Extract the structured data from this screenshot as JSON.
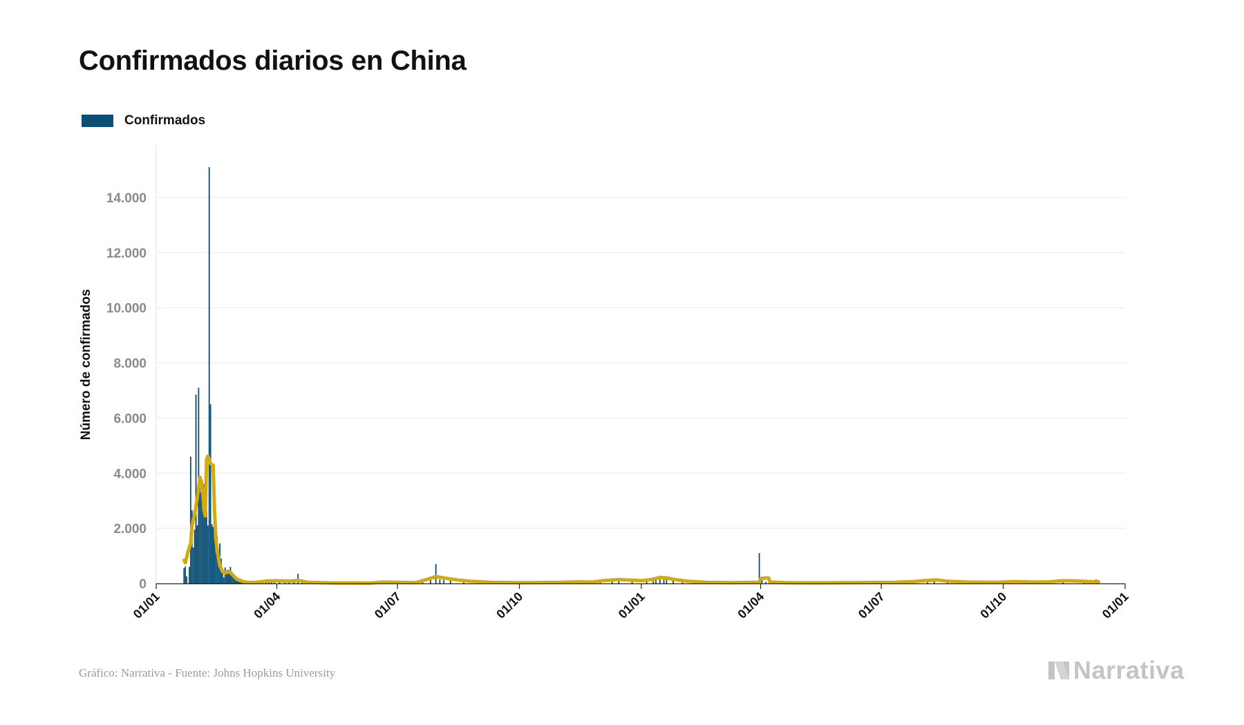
{
  "title": "Confirmados diarios en China",
  "legend": {
    "label": "Confirmados",
    "color": "#0b4f76"
  },
  "footer": {
    "source": "Gráfico: Narrativa - Fuente: Johns Hopkins University"
  },
  "brand": {
    "name": "Narrativa",
    "icon": "narrativa-logo-icon"
  },
  "chart_data": {
    "type": "bar",
    "ylabel": "Número de confirmados",
    "ylim": [
      0,
      15000
    ],
    "y_ticks": [
      0,
      2000,
      4000,
      6000,
      8000,
      10000,
      12000,
      14000
    ],
    "y_tick_labels": [
      "0",
      "2.000",
      "4.000",
      "6.000",
      "8.000",
      "10.000",
      "12.000",
      "14.000"
    ],
    "x_range": [
      "2020-01-01",
      "2022-01-01"
    ],
    "x_ticks": [
      "2020-01-01",
      "2020-04-01",
      "2020-07-01",
      "2020-10-01",
      "2021-01-01",
      "2021-04-01",
      "2021-07-01",
      "2021-10-01",
      "2022-01-01"
    ],
    "x_tick_labels": [
      "01/01",
      "01/04",
      "01/07",
      "01/10",
      "01/01",
      "01/04",
      "01/07",
      "01/10",
      "01/01"
    ],
    "grid": true,
    "legend_position": "top-left",
    "bar_color": "#0b4f76",
    "line_color": "#d1ab10",
    "series": [
      {
        "name": "Confirmados",
        "type": "bar",
        "points": [
          [
            "2020-01-22",
            550
          ],
          [
            "2020-01-23",
            620
          ],
          [
            "2020-01-24",
            260
          ],
          [
            "2020-01-26",
            600
          ],
          [
            "2020-01-27",
            4600
          ],
          [
            "2020-01-28",
            2650
          ],
          [
            "2020-01-29",
            1300
          ],
          [
            "2020-01-30",
            1950
          ],
          [
            "2020-01-31",
            6850
          ],
          [
            "2020-02-01",
            2100
          ],
          [
            "2020-02-02",
            7100
          ],
          [
            "2020-02-03",
            3800
          ],
          [
            "2020-02-04",
            3300
          ],
          [
            "2020-02-05",
            3700
          ],
          [
            "2020-02-06",
            3600
          ],
          [
            "2020-02-07",
            3100
          ],
          [
            "2020-02-08",
            2600
          ],
          [
            "2020-02-09",
            2100
          ],
          [
            "2020-02-10",
            15100
          ],
          [
            "2020-02-11",
            6500
          ],
          [
            "2020-02-12",
            2150
          ],
          [
            "2020-02-13",
            2050
          ],
          [
            "2020-02-14",
            1900
          ],
          [
            "2020-02-15",
            1800
          ],
          [
            "2020-02-16",
            1700
          ],
          [
            "2020-02-17",
            1200
          ],
          [
            "2020-02-18",
            1450
          ],
          [
            "2020-02-19",
            900
          ],
          [
            "2020-02-20",
            500
          ],
          [
            "2020-02-21",
            220
          ],
          [
            "2020-02-22",
            580
          ],
          [
            "2020-02-23",
            400
          ],
          [
            "2020-02-24",
            500
          ],
          [
            "2020-02-25",
            420
          ],
          [
            "2020-02-26",
            600
          ],
          [
            "2020-02-27",
            430
          ],
          [
            "2020-02-28",
            320
          ],
          [
            "2020-02-29",
            250
          ],
          [
            "2020-03-01",
            200
          ],
          [
            "2020-03-02",
            140
          ],
          [
            "2020-03-03",
            120
          ],
          [
            "2020-03-04",
            120
          ],
          [
            "2020-03-05",
            100
          ],
          [
            "2020-03-06",
            80
          ],
          [
            "2020-03-07",
            45
          ],
          [
            "2020-03-08",
            40
          ],
          [
            "2020-03-09",
            30
          ],
          [
            "2020-03-10",
            30
          ],
          [
            "2020-03-11",
            20
          ],
          [
            "2020-03-12",
            20
          ],
          [
            "2020-03-14",
            25
          ],
          [
            "2020-03-16",
            30
          ],
          [
            "2020-03-18",
            40
          ],
          [
            "2020-03-20",
            60
          ],
          [
            "2020-03-22",
            80
          ],
          [
            "2020-03-24",
            90
          ],
          [
            "2020-03-26",
            100
          ],
          [
            "2020-03-28",
            110
          ],
          [
            "2020-03-30",
            100
          ],
          [
            "2020-04-03",
            80
          ],
          [
            "2020-04-07",
            90
          ],
          [
            "2020-04-10",
            100
          ],
          [
            "2020-04-14",
            110
          ],
          [
            "2020-04-17",
            350
          ],
          [
            "2020-04-20",
            50
          ],
          [
            "2020-04-25",
            30
          ],
          [
            "2020-05-10",
            20
          ],
          [
            "2020-06-15",
            60
          ],
          [
            "2020-06-20",
            40
          ],
          [
            "2020-06-25",
            30
          ],
          [
            "2020-07-15",
            60
          ],
          [
            "2020-07-20",
            100
          ],
          [
            "2020-07-26",
            120
          ],
          [
            "2020-07-30",
            700
          ],
          [
            "2020-08-02",
            150
          ],
          [
            "2020-08-05",
            130
          ],
          [
            "2020-08-10",
            100
          ],
          [
            "2020-08-20",
            40
          ],
          [
            "2020-09-15",
            20
          ],
          [
            "2020-10-15",
            30
          ],
          [
            "2020-11-15",
            40
          ],
          [
            "2020-12-01",
            80
          ],
          [
            "2020-12-10",
            120
          ],
          [
            "2020-12-15",
            180
          ],
          [
            "2020-12-25",
            100
          ],
          [
            "2021-01-05",
            150
          ],
          [
            "2021-01-10",
            220
          ],
          [
            "2021-01-12",
            200
          ],
          [
            "2021-01-15",
            250
          ],
          [
            "2021-01-18",
            230
          ],
          [
            "2021-01-20",
            200
          ],
          [
            "2021-01-25",
            180
          ],
          [
            "2021-02-01",
            100
          ],
          [
            "2021-02-10",
            30
          ],
          [
            "2021-03-01",
            20
          ],
          [
            "2021-03-15",
            40
          ],
          [
            "2021-03-28",
            40
          ],
          [
            "2021-03-31",
            1100
          ],
          [
            "2021-04-02",
            200
          ],
          [
            "2021-04-05",
            60
          ],
          [
            "2021-05-15",
            20
          ],
          [
            "2021-06-15",
            30
          ],
          [
            "2021-07-15",
            40
          ],
          [
            "2021-07-25",
            90
          ],
          [
            "2021-08-05",
            120
          ],
          [
            "2021-08-10",
            100
          ],
          [
            "2021-08-20",
            60
          ],
          [
            "2021-09-15",
            60
          ],
          [
            "2021-10-20",
            40
          ],
          [
            "2021-11-05",
            90
          ],
          [
            "2021-11-15",
            80
          ],
          [
            "2021-12-01",
            60
          ],
          [
            "2021-12-10",
            150
          ],
          [
            "2021-12-12",
            90
          ]
        ]
      },
      {
        "name": "",
        "type": "line",
        "points": [
          [
            "2020-01-22",
            850
          ],
          [
            "2020-01-23",
            750
          ],
          [
            "2020-01-25",
            1150
          ],
          [
            "2020-01-27",
            1450
          ],
          [
            "2020-01-28",
            2100
          ],
          [
            "2020-01-30",
            2500
          ],
          [
            "2020-02-01",
            3100
          ],
          [
            "2020-02-03",
            3850
          ],
          [
            "2020-02-04",
            3700
          ],
          [
            "2020-02-05",
            3450
          ],
          [
            "2020-02-06",
            2700
          ],
          [
            "2020-02-07",
            2450
          ],
          [
            "2020-02-08",
            4500
          ],
          [
            "2020-02-09",
            4620
          ],
          [
            "2020-02-10",
            4500
          ],
          [
            "2020-02-11",
            4350
          ],
          [
            "2020-02-13",
            4280
          ],
          [
            "2020-02-14",
            2650
          ],
          [
            "2020-02-15",
            1650
          ],
          [
            "2020-02-16",
            1200
          ],
          [
            "2020-02-18",
            650
          ],
          [
            "2020-02-20",
            430
          ],
          [
            "2020-02-22",
            380
          ],
          [
            "2020-02-25",
            430
          ],
          [
            "2020-02-28",
            300
          ],
          [
            "2020-03-02",
            150
          ],
          [
            "2020-03-06",
            80
          ],
          [
            "2020-03-10",
            40
          ],
          [
            "2020-03-15",
            35
          ],
          [
            "2020-03-20",
            60
          ],
          [
            "2020-03-25",
            90
          ],
          [
            "2020-04-01",
            100
          ],
          [
            "2020-04-10",
            80
          ],
          [
            "2020-04-17",
            110
          ],
          [
            "2020-04-25",
            40
          ],
          [
            "2020-05-15",
            20
          ],
          [
            "2020-06-10",
            15
          ],
          [
            "2020-06-20",
            50
          ],
          [
            "2020-07-01",
            40
          ],
          [
            "2020-07-15",
            30
          ],
          [
            "2020-07-25",
            170
          ],
          [
            "2020-07-30",
            250
          ],
          [
            "2020-08-05",
            200
          ],
          [
            "2020-08-15",
            130
          ],
          [
            "2020-08-25",
            80
          ],
          [
            "2020-09-10",
            40
          ],
          [
            "2020-10-01",
            30
          ],
          [
            "2020-11-01",
            40
          ],
          [
            "2020-11-15",
            60
          ],
          [
            "2020-11-25",
            50
          ],
          [
            "2020-12-05",
            110
          ],
          [
            "2020-12-15",
            140
          ],
          [
            "2020-12-25",
            120
          ],
          [
            "2021-01-01",
            100
          ],
          [
            "2021-01-10",
            150
          ],
          [
            "2021-01-15",
            220
          ],
          [
            "2021-01-20",
            200
          ],
          [
            "2021-01-25",
            150
          ],
          [
            "2021-02-05",
            80
          ],
          [
            "2021-02-20",
            40
          ],
          [
            "2021-03-10",
            30
          ],
          [
            "2021-03-25",
            40
          ],
          [
            "2021-03-31",
            40
          ],
          [
            "2021-04-01",
            180
          ],
          [
            "2021-04-05",
            200
          ],
          [
            "2021-04-07",
            200
          ],
          [
            "2021-04-08",
            50
          ],
          [
            "2021-04-20",
            30
          ],
          [
            "2021-05-15",
            25
          ],
          [
            "2021-06-15",
            35
          ],
          [
            "2021-07-10",
            40
          ],
          [
            "2021-07-25",
            70
          ],
          [
            "2021-08-05",
            110
          ],
          [
            "2021-08-12",
            130
          ],
          [
            "2021-08-20",
            80
          ],
          [
            "2021-09-05",
            50
          ],
          [
            "2021-09-25",
            40
          ],
          [
            "2021-10-10",
            70
          ],
          [
            "2021-10-25",
            50
          ],
          [
            "2021-11-05",
            60
          ],
          [
            "2021-11-15",
            100
          ],
          [
            "2021-11-25",
            90
          ],
          [
            "2021-12-05",
            70
          ],
          [
            "2021-12-12",
            60
          ]
        ]
      }
    ]
  }
}
